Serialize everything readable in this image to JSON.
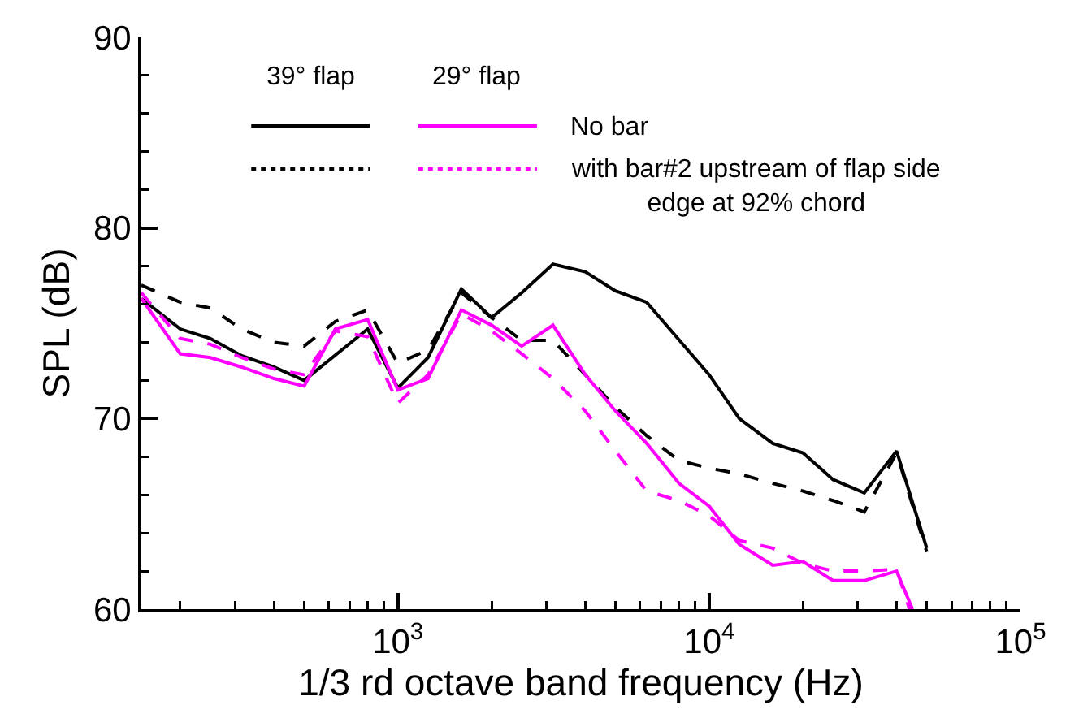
{
  "chart_data": {
    "type": "line",
    "xlabel": "1/3 rd octave band frequency (Hz)",
    "ylabel": "SPL (dB)",
    "log": "x",
    "xlim": [
      150,
      100000
    ],
    "ylim": [
      60,
      90
    ],
    "xticks": [
      {
        "value": 200,
        "label": null
      },
      {
        "value": 300,
        "label": null
      },
      {
        "value": 400,
        "label": null
      },
      {
        "value": 500,
        "label": null
      },
      {
        "value": 600,
        "label": null
      },
      {
        "value": 700,
        "label": null
      },
      {
        "value": 800,
        "label": null
      },
      {
        "value": 900,
        "label": null
      },
      {
        "value": 1000,
        "label": "10$^{3}$"
      },
      {
        "value": 2000,
        "label": null
      },
      {
        "value": 3000,
        "label": null
      },
      {
        "value": 4000,
        "label": null
      },
      {
        "value": 5000,
        "label": null
      },
      {
        "value": 6000,
        "label": null
      },
      {
        "value": 7000,
        "label": null
      },
      {
        "value": 8000,
        "label": null
      },
      {
        "value": 9000,
        "label": null
      },
      {
        "value": 10000,
        "label": "10$^{4}$"
      },
      {
        "value": 20000,
        "label": null
      },
      {
        "value": 30000,
        "label": null
      },
      {
        "value": 40000,
        "label": null
      },
      {
        "value": 50000,
        "label": null
      },
      {
        "value": 60000,
        "label": null
      },
      {
        "value": 70000,
        "label": null
      },
      {
        "value": 80000,
        "label": null
      },
      {
        "value": 90000,
        "label": null
      },
      {
        "value": 100000,
        "label": "10$^{5}$"
      }
    ],
    "yticks": [
      60,
      {
        "value": 62,
        "label": null
      },
      {
        "value": 64,
        "label": null
      },
      {
        "value": 66,
        "label": null
      },
      {
        "value": 68,
        "label": null
      },
      70,
      {
        "value": 72,
        "label": null
      },
      {
        "value": 74,
        "label": null
      },
      {
        "value": 76,
        "label": null
      },
      {
        "value": 78,
        "label": null
      },
      80,
      {
        "value": 82,
        "label": null
      },
      {
        "value": 84,
        "label": null
      },
      {
        "value": 86,
        "label": null
      },
      {
        "value": 88,
        "label": null
      },
      90
    ],
    "grid": false,
    "legend": "top",
    "marker": "none",
    "annotations": [
      "39° flap",
      "29° flap"
    ],
    "series": [
      {
        "color": "#000000",
        "line_style": "solid",
        "x": [
          150,
          200,
          250,
          315,
          400,
          500,
          800,
          1000,
          1250,
          1600,
          2000,
          2500,
          3150,
          4000,
          5000,
          6300,
          10000,
          12500,
          16000,
          20000,
          25000,
          31500,
          40000,
          50000
        ],
        "values": [
          76.3,
          74.7,
          74.2,
          73.3,
          72.7,
          72.0,
          74.7,
          71.6,
          73.2,
          76.8,
          75.3,
          76.6,
          78.1,
          77.7,
          76.7,
          76.1,
          72.3,
          70.0,
          68.7,
          68.2,
          66.8,
          66.1,
          68.3,
          63.2
        ]
      },
      {
        "color": "#000000",
        "line_style": "dashed",
        "x": [
          150,
          200,
          250,
          315,
          400,
          500,
          630,
          800,
          1000,
          1250,
          1600,
          2000,
          2500,
          3150,
          4000,
          5000,
          6300,
          8000,
          10000,
          12500,
          16000,
          20000,
          25000,
          31500,
          40000,
          50000
        ],
        "values": [
          77.0,
          76.1,
          75.8,
          74.7,
          74.0,
          73.8,
          75.1,
          75.7,
          72.9,
          73.6,
          76.6,
          75.3,
          74.1,
          74.1,
          72.3,
          70.6,
          69.1,
          67.8,
          67.4,
          67.1,
          66.6,
          66.2,
          65.7,
          65.1,
          68.2,
          63.0
        ]
      },
      {
        "name": "No bar",
        "color": "#ff00ff",
        "line_style": "solid",
        "x": [
          150,
          200,
          250,
          315,
          400,
          500,
          630,
          800,
          1000,
          1250,
          1600,
          2000,
          2500,
          3150,
          4000,
          5000,
          6300,
          8000,
          10000,
          12500,
          16000,
          20000,
          25000,
          31500,
          40000,
          45000
        ],
        "values": [
          76.3,
          73.4,
          73.2,
          72.7,
          72.1,
          71.7,
          74.7,
          75.2,
          71.5,
          72.1,
          75.7,
          74.9,
          73.8,
          74.9,
          72.3,
          70.4,
          68.7,
          66.6,
          65.4,
          63.4,
          62.3,
          62.5,
          61.5,
          61.5,
          62.0,
          60.0
        ]
      },
      {
        "name": "with bar#2 upstream of flap side\nedge at 92% chord",
        "color": "#ff00ff",
        "line_style": "dashed",
        "x": [
          150,
          200,
          250,
          315,
          400,
          500,
          630,
          800,
          1000,
          1250,
          1600,
          2000,
          2500,
          3150,
          4000,
          5000,
          6300,
          8000,
          10000,
          12500,
          16000,
          20000,
          25000,
          31500,
          40000,
          44000
        ],
        "values": [
          76.6,
          74.2,
          73.9,
          73.2,
          72.6,
          72.3,
          74.6,
          74.3,
          70.8,
          72.3,
          75.5,
          74.6,
          73.4,
          72.1,
          70.4,
          68.3,
          66.2,
          65.7,
          64.9,
          63.6,
          63.2,
          62.4,
          62.0,
          62.0,
          62.1,
          60.0
        ]
      }
    ]
  }
}
